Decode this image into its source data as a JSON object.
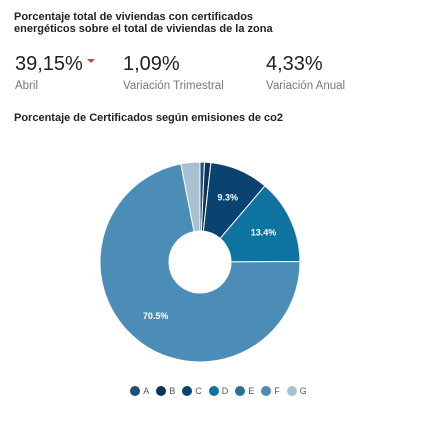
{
  "header": {
    "title": "Porcentaje total de viviendas con certificados energéticos sobre el total de viviendas de la zona"
  },
  "kpis": [
    {
      "value": "39,15%",
      "caption": "Abril"
    },
    {
      "value": "1,09%",
      "caption": "Variación Trimestral"
    },
    {
      "value": "4,33%",
      "caption": "Variación Anual"
    }
  ],
  "chart_section": {
    "title": "Porcentaje de Certificados según emisiones de co2"
  },
  "chart_data": {
    "type": "pie",
    "donut": true,
    "categories": [
      "A",
      "B",
      "C",
      "D",
      "E",
      "F",
      "G"
    ],
    "values": [
      0.7,
      1.0,
      9.3,
      13.4,
      0.0,
      70.5,
      3.0
    ],
    "colors": [
      "#1c4f7c",
      "#0c3358",
      "#0a4270",
      "#0f73a1",
      "#2b6e98",
      "#4b8db6",
      "#a9c0d0"
    ],
    "data_labels": [
      "",
      "",
      "9.3%",
      "13.4%",
      "",
      "70.5%",
      ""
    ],
    "legend": {
      "position": "bottom"
    }
  }
}
